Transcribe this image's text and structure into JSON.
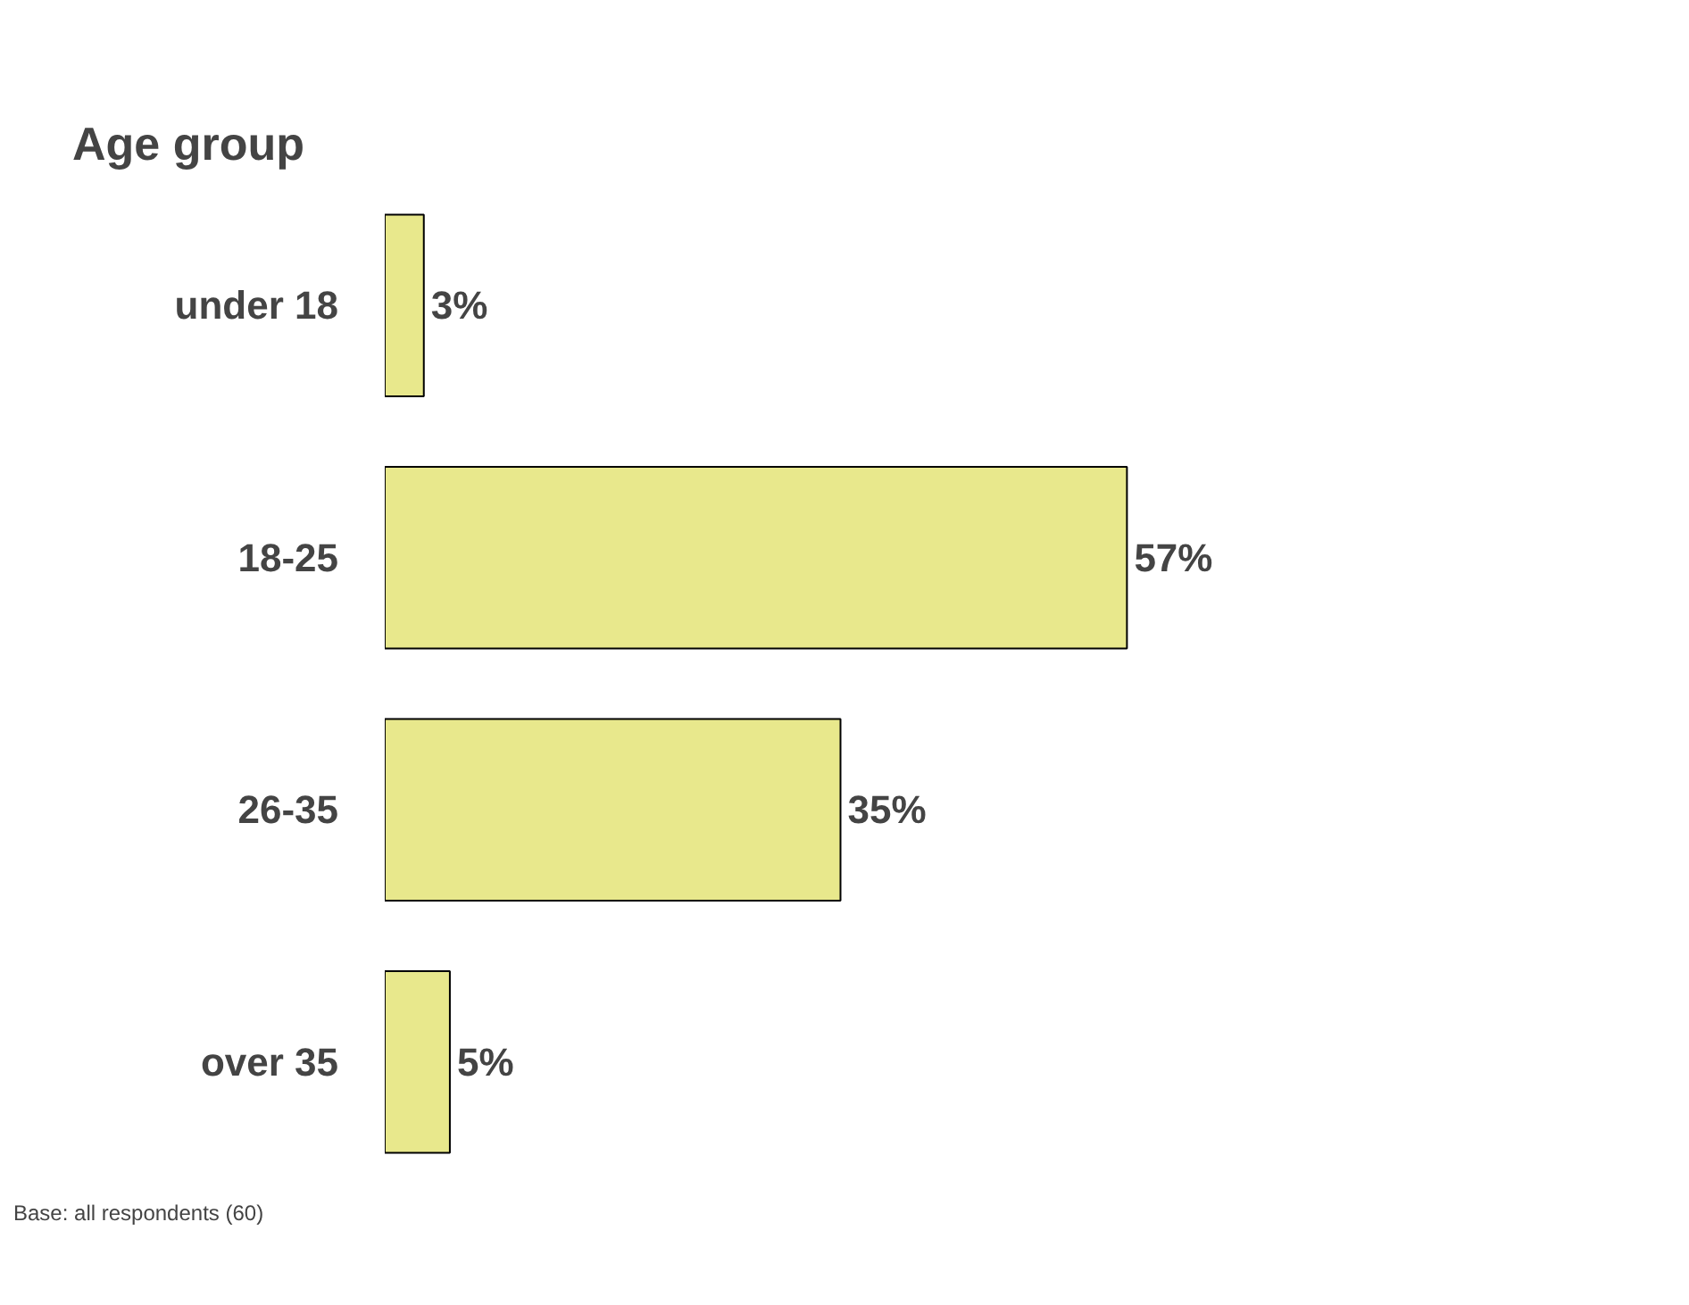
{
  "chart_data": {
    "type": "bar",
    "orientation": "horizontal",
    "title": "Age group",
    "categories": [
      "under 18",
      "18-25",
      "26-35",
      "over 35"
    ],
    "values": [
      3,
      57,
      35,
      5
    ],
    "value_labels": [
      "3%",
      "57%",
      "35%",
      "5%"
    ],
    "color": "#e8e88c",
    "grid": false,
    "tick_labels": "y",
    "annotations": [
      "Base: all respondents (60)"
    ]
  }
}
